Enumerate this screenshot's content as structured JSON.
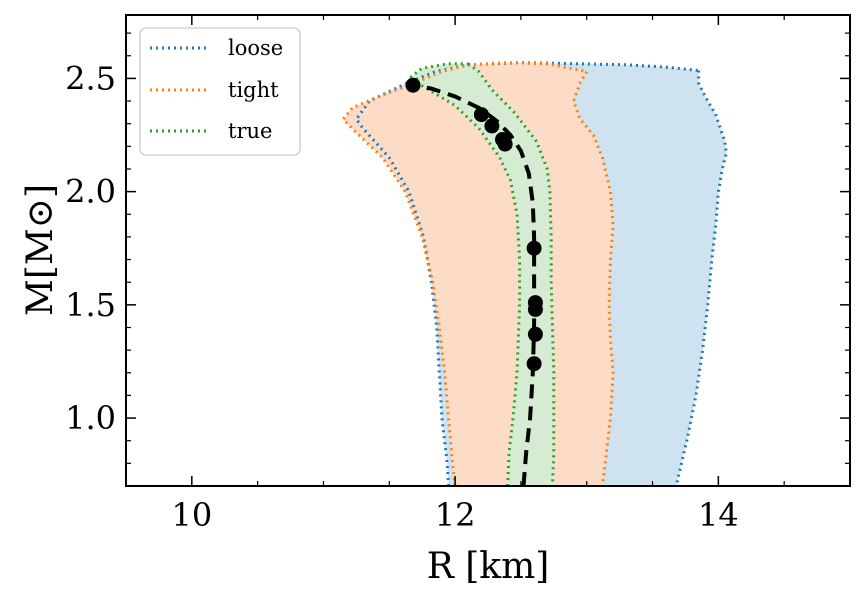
{
  "chart_data": {
    "type": "area",
    "xlabel": "R [km]",
    "ylabel": "M[M⊙]",
    "xlim": [
      9.5,
      15.0
    ],
    "ylim": [
      0.7,
      2.78
    ],
    "xticks": [
      10,
      12,
      14
    ],
    "xtick_labels": [
      "10",
      "12",
      "14"
    ],
    "yticks": [
      1.0,
      1.5,
      2.0,
      2.5
    ],
    "ytick_labels": [
      "1.0",
      "1.5",
      "2.0",
      "2.5"
    ],
    "grid": false,
    "legend_position": "top-left",
    "legend": [
      {
        "label": "loose",
        "color": "#1f77b4"
      },
      {
        "label": "tight",
        "color": "#ff7f0e"
      },
      {
        "label": "true",
        "color": "#2ca02c"
      }
    ],
    "bands": [
      {
        "name": "loose",
        "stroke": "#1f77b4",
        "fill": "#cfe2f0",
        "left": [
          [
            11.95,
            0.7
          ],
          [
            11.94,
            0.8
          ],
          [
            11.9,
            1.0
          ],
          [
            11.88,
            1.2
          ],
          [
            11.86,
            1.4
          ],
          [
            11.82,
            1.6
          ],
          [
            11.76,
            1.8
          ],
          [
            11.65,
            2.0
          ],
          [
            11.5,
            2.15
          ],
          [
            11.3,
            2.28
          ],
          [
            11.25,
            2.32
          ],
          [
            11.35,
            2.4
          ],
          [
            11.6,
            2.47
          ],
          [
            11.85,
            2.53
          ],
          [
            12.1,
            2.56
          ],
          [
            12.5,
            2.57
          ],
          [
            12.9,
            2.565
          ],
          [
            13.3,
            2.56
          ],
          [
            13.6,
            2.55
          ],
          [
            13.85,
            2.535
          ]
        ],
        "right": [
          [
            13.85,
            2.535
          ],
          [
            13.85,
            2.48
          ],
          [
            13.9,
            2.42
          ],
          [
            13.98,
            2.34
          ],
          [
            14.05,
            2.22
          ],
          [
            14.06,
            2.17
          ],
          [
            14.03,
            2.1
          ],
          [
            14.0,
            2.0
          ],
          [
            13.98,
            1.85
          ],
          [
            13.95,
            1.7
          ],
          [
            13.92,
            1.5
          ],
          [
            13.88,
            1.3
          ],
          [
            13.83,
            1.1
          ],
          [
            13.76,
            0.9
          ],
          [
            13.68,
            0.7
          ]
        ]
      },
      {
        "name": "tight",
        "stroke": "#ff7f0e",
        "fill": "#fcdcc6",
        "left": [
          [
            12.0,
            0.7
          ],
          [
            11.98,
            0.8
          ],
          [
            11.95,
            1.0
          ],
          [
            11.92,
            1.2
          ],
          [
            11.88,
            1.4
          ],
          [
            11.83,
            1.6
          ],
          [
            11.75,
            1.8
          ],
          [
            11.62,
            2.0
          ],
          [
            11.45,
            2.15
          ],
          [
            11.25,
            2.26
          ],
          [
            11.15,
            2.32
          ],
          [
            11.22,
            2.37
          ],
          [
            11.42,
            2.42
          ],
          [
            11.65,
            2.47
          ],
          [
            11.9,
            2.53
          ],
          [
            12.1,
            2.56
          ],
          [
            12.4,
            2.57
          ],
          [
            12.7,
            2.565
          ],
          [
            13.0,
            2.53
          ]
        ],
        "right": [
          [
            13.0,
            2.53
          ],
          [
            12.95,
            2.48
          ],
          [
            12.9,
            2.4
          ],
          [
            12.95,
            2.32
          ],
          [
            13.05,
            2.25
          ],
          [
            13.12,
            2.15
          ],
          [
            13.18,
            2.0
          ],
          [
            13.2,
            1.85
          ],
          [
            13.18,
            1.7
          ],
          [
            13.17,
            1.5
          ],
          [
            13.18,
            1.35
          ],
          [
            13.2,
            1.2
          ],
          [
            13.18,
            1.0
          ],
          [
            13.15,
            0.85
          ],
          [
            13.12,
            0.7
          ]
        ]
      },
      {
        "name": "true",
        "stroke": "#2ca02c",
        "fill": "#d6ecd2",
        "left": [
          [
            12.4,
            0.7
          ],
          [
            12.41,
            0.85
          ],
          [
            12.44,
            1.0
          ],
          [
            12.47,
            1.2
          ],
          [
            12.48,
            1.35
          ],
          [
            12.49,
            1.5
          ],
          [
            12.49,
            1.7
          ],
          [
            12.47,
            1.9
          ],
          [
            12.42,
            2.05
          ],
          [
            12.34,
            2.15
          ],
          [
            12.18,
            2.28
          ],
          [
            12.0,
            2.38
          ],
          [
            11.8,
            2.45
          ],
          [
            11.65,
            2.5
          ],
          [
            11.75,
            2.545
          ],
          [
            11.95,
            2.565
          ],
          [
            12.1,
            2.565
          ]
        ],
        "right": [
          [
            12.1,
            2.565
          ],
          [
            12.18,
            2.53
          ],
          [
            12.28,
            2.45
          ],
          [
            12.45,
            2.35
          ],
          [
            12.62,
            2.22
          ],
          [
            12.7,
            2.1
          ],
          [
            12.72,
            2.0
          ],
          [
            12.73,
            1.8
          ],
          [
            12.73,
            1.6
          ],
          [
            12.74,
            1.4
          ],
          [
            12.75,
            1.2
          ],
          [
            12.75,
            1.0
          ],
          [
            12.75,
            0.85
          ],
          [
            12.74,
            0.7
          ]
        ]
      }
    ],
    "true_curve": {
      "color": "#000000",
      "x": [
        12.52,
        12.54,
        12.57,
        12.59,
        12.6,
        12.6,
        12.6,
        12.59,
        12.56,
        12.5,
        12.42,
        12.32,
        12.18,
        12.0,
        11.82,
        11.68
      ],
      "y": [
        0.7,
        0.85,
        1.0,
        1.2,
        1.4,
        1.6,
        1.8,
        1.95,
        2.08,
        2.18,
        2.25,
        2.31,
        2.37,
        2.42,
        2.455,
        2.47
      ]
    },
    "points": {
      "color": "#000000",
      "x": [
        11.68,
        12.2,
        12.28,
        12.36,
        12.38,
        12.6,
        12.61,
        12.61,
        12.61,
        12.6
      ],
      "y": [
        2.47,
        2.34,
        2.29,
        2.23,
        2.21,
        1.75,
        1.51,
        1.48,
        1.37,
        1.24
      ]
    }
  }
}
